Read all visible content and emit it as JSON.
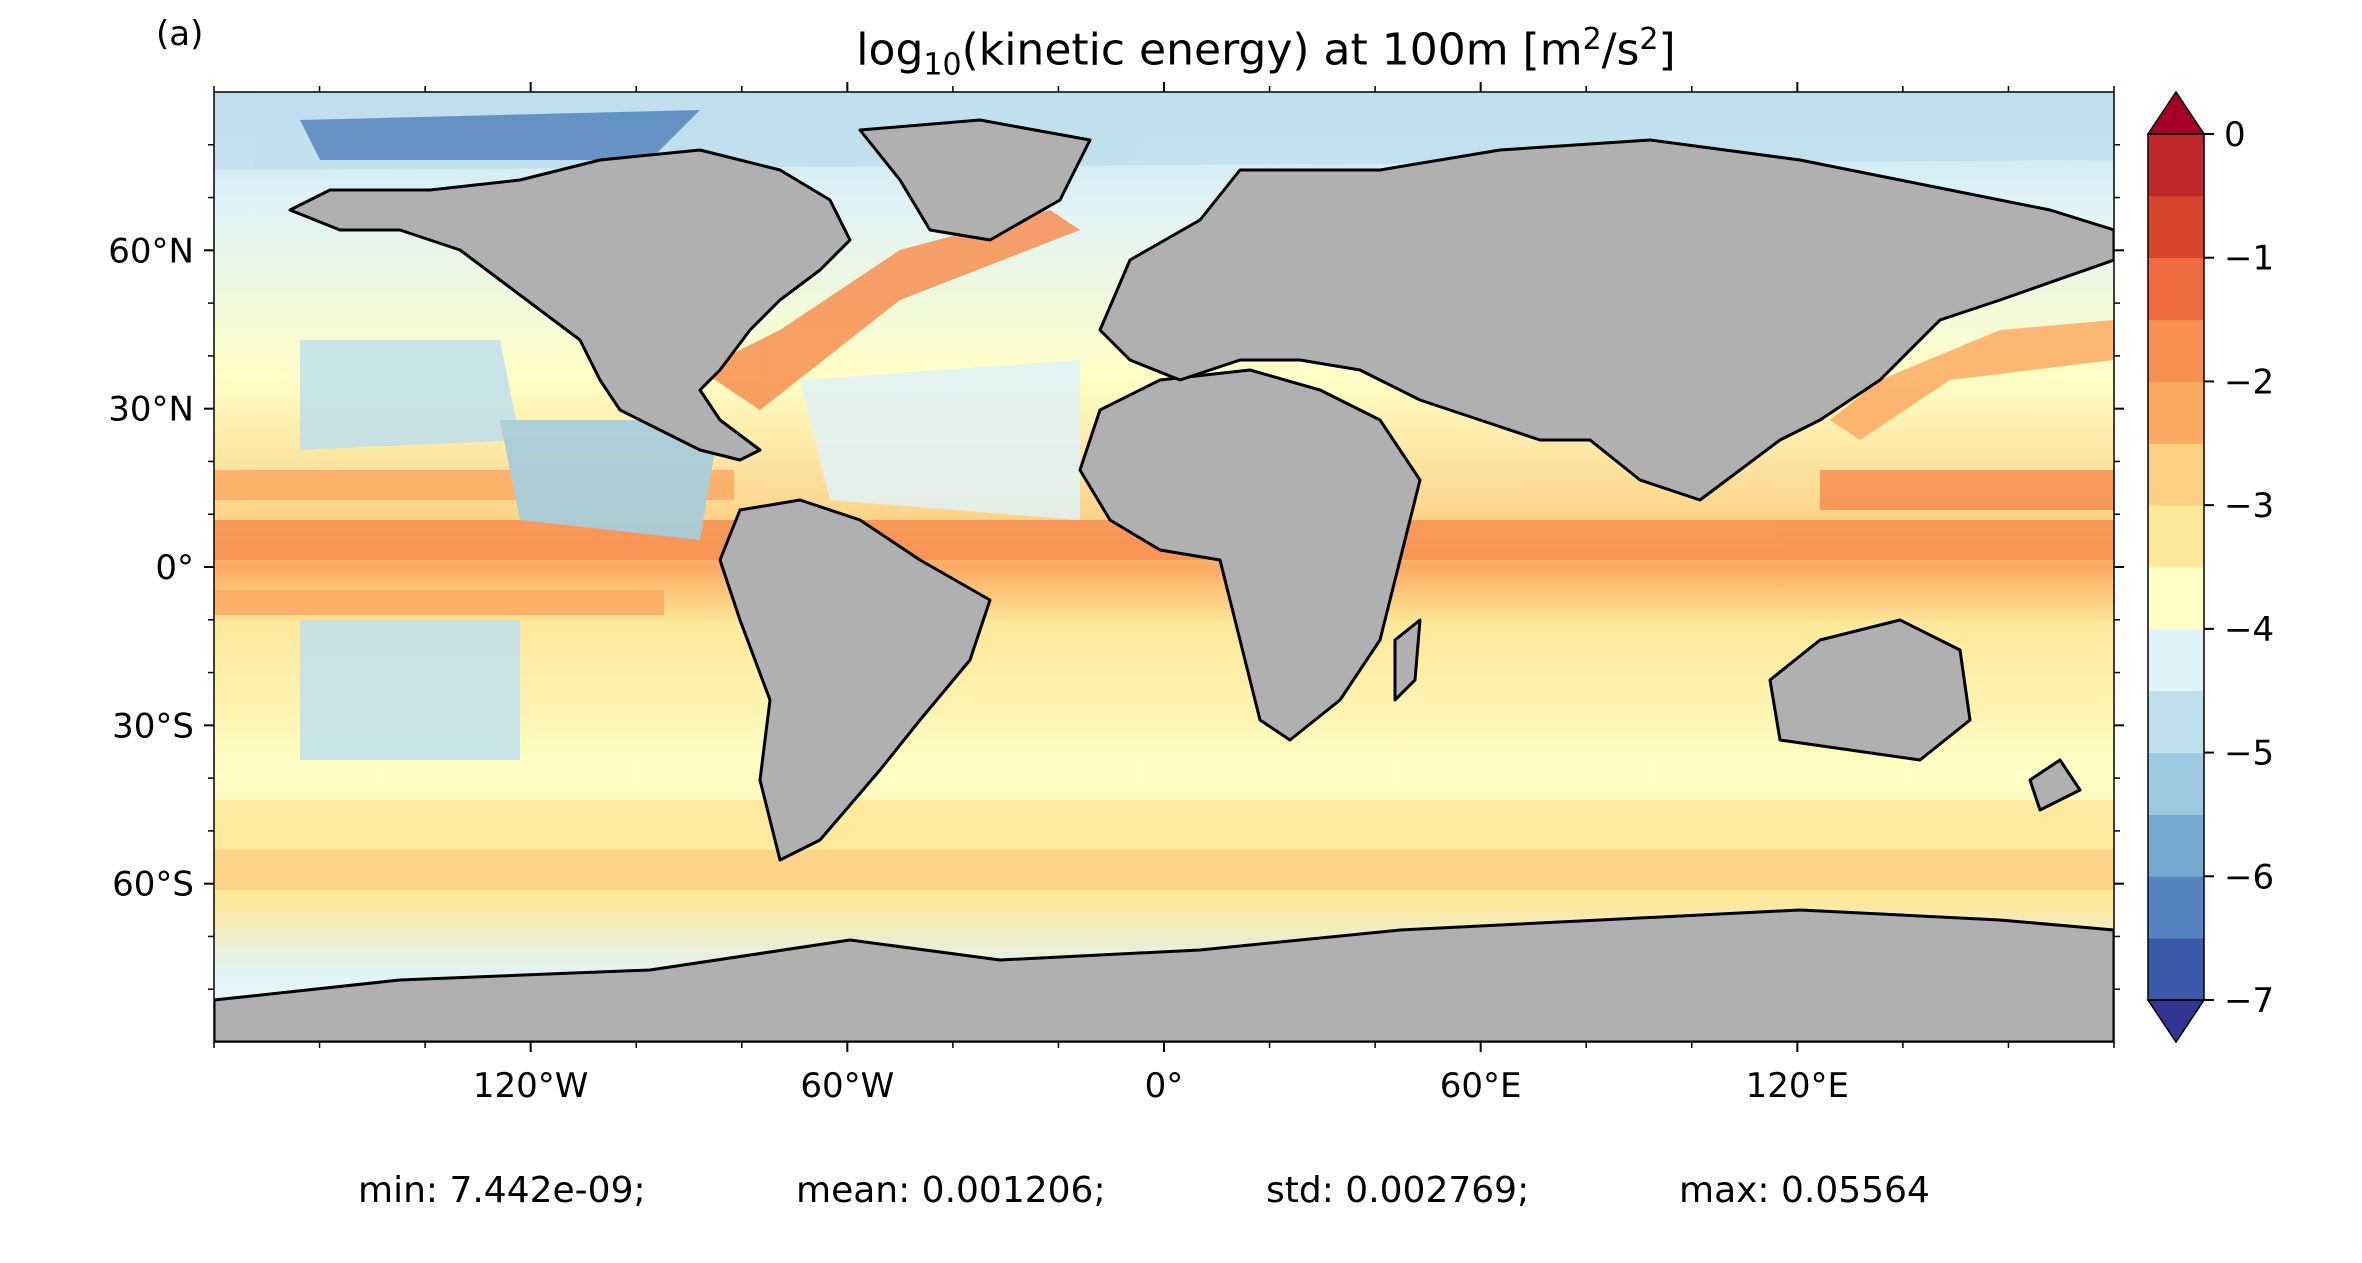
{
  "figure": {
    "panel_label": "(a)",
    "title_prefix": "log",
    "title_sub": "10",
    "title_mid": "(kinetic energy) at 100m [m",
    "title_sup1": "2",
    "title_mid2": "/s",
    "title_sup2": "2",
    "title_suffix": "]"
  },
  "map": {
    "projection": "plate carree",
    "lat_ticks": [
      "60°N",
      "30°N",
      "0°",
      "30°S",
      "60°S"
    ],
    "lon_ticks": [
      "120°W",
      "60°W",
      "0°",
      "60°E",
      "120°E"
    ],
    "land_color": "#b0b0b0",
    "coastline_color": "#000000"
  },
  "colorbar": {
    "ticks": [
      "0",
      "−1",
      "−2",
      "−3",
      "−4",
      "−5",
      "−6",
      "−7"
    ],
    "extend": "both",
    "colors": [
      "#313695",
      "#3b59a8",
      "#5584be",
      "#74a9cf",
      "#9ecae1",
      "#bfdfed",
      "#e0f3f8",
      "#fefec5",
      "#fee89a",
      "#fdd084",
      "#fcaa63",
      "#f88f52",
      "#ef6c41",
      "#d9442f",
      "#c1272d",
      "#a50026"
    ]
  },
  "stats": {
    "min": "min: 7.442e-09;",
    "mean": "mean: 0.001206;",
    "std": "std: 0.002769;",
    "max": "max: 0.05564"
  },
  "chart_data": {
    "type": "heatmap",
    "variable": "log10(kinetic energy) at 100m [m2/s2]",
    "value_range": [
      -7,
      0
    ],
    "xlim": [
      -180,
      180
    ],
    "ylim": [
      -90,
      90
    ]
  }
}
